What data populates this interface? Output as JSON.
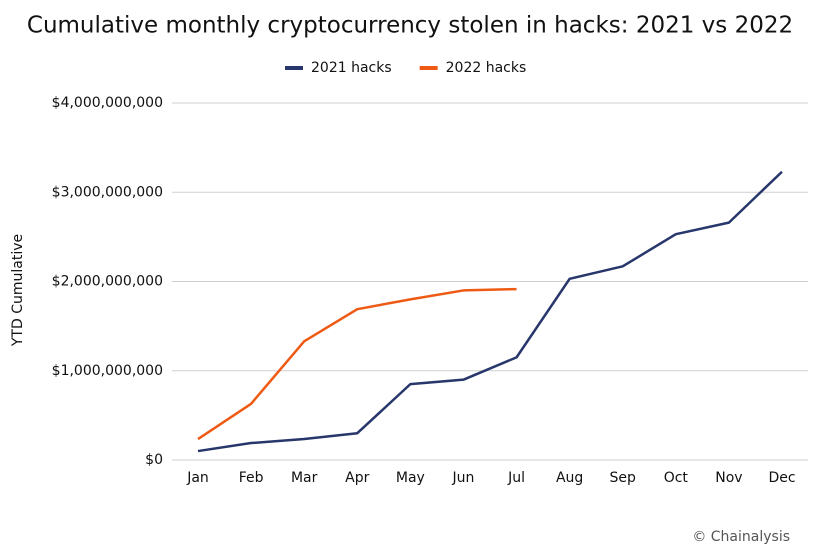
{
  "chart_data": {
    "type": "line",
    "title": "Cumulative monthly cryptocurrency stolen in hacks: 2021 vs 2022",
    "y_label": "YTD Cumulative",
    "source": "© Chainalysis",
    "categories": [
      "Jan",
      "Feb",
      "Mar",
      "Apr",
      "May",
      "Jun",
      "Jul",
      "Aug",
      "Sep",
      "Oct",
      "Nov",
      "Dec"
    ],
    "series": [
      {
        "name": "2021 hacks",
        "color": "#27366b",
        "values": [
          100000000,
          190000000,
          235000000,
          300000000,
          850000000,
          900000000,
          1150000000,
          2030000000,
          2170000000,
          2530000000,
          2660000000,
          3230000000
        ]
      },
      {
        "name": "2022 hacks",
        "color": "#ee5a14",
        "values": [
          235000000,
          630000000,
          1330000000,
          1690000000,
          1800000000,
          1900000000,
          1915000000,
          null,
          null,
          null,
          null,
          null
        ]
      }
    ],
    "ylim": [
      0,
      4000000000
    ],
    "yticks": [
      {
        "value": 0,
        "label": "$0"
      },
      {
        "value": 1000000000,
        "label": "$1,000,000,000"
      },
      {
        "value": 2000000000,
        "label": "$2,000,000,000"
      },
      {
        "value": 3000000000,
        "label": "$3,000,000,000"
      },
      {
        "value": 4000000000,
        "label": "$4,000,000,000"
      }
    ],
    "grid": true,
    "legend": "top"
  }
}
